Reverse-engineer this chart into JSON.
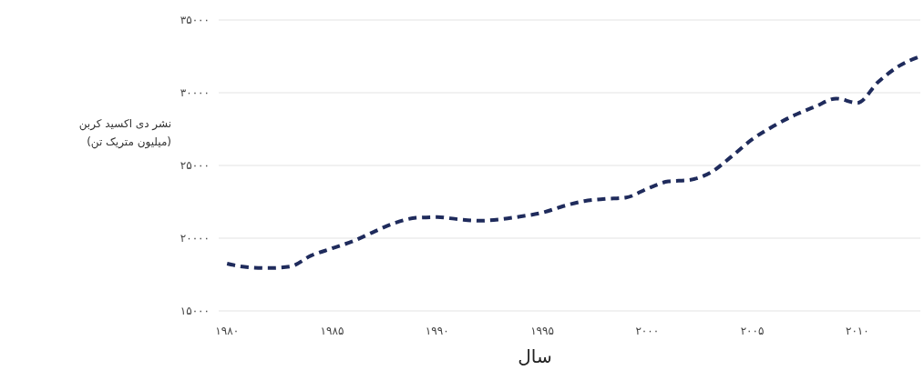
{
  "chart_data": {
    "type": "line",
    "xlabel": "سال",
    "ylabel": "نشر دی اکسید کربن\n(میلیون متریک تن)",
    "x": [
      1980,
      1981,
      1982,
      1983,
      1984,
      1985,
      1986,
      1987,
      1988,
      1989,
      1990,
      1991,
      1992,
      1993,
      1994,
      1995,
      1996,
      1997,
      1998,
      1999,
      2000,
      2001,
      2002,
      2003,
      2004,
      2005,
      2006,
      2007,
      2008,
      2009,
      2010,
      2011,
      2012,
      2013
    ],
    "series": [
      {
        "color": "#1f2b5c",
        "values": [
          18250,
          18000,
          17950,
          18050,
          18800,
          19300,
          19800,
          20450,
          21050,
          21400,
          21450,
          21300,
          21200,
          21300,
          21500,
          21750,
          22200,
          22550,
          22700,
          22800,
          23400,
          23900,
          24000,
          24500,
          25600,
          26800,
          27700,
          28450,
          29050,
          29600,
          29300,
          30750,
          31850,
          32500
        ]
      }
    ],
    "xlim": [
      1979.6,
      2013
    ],
    "xticks": [
      {
        "value": 1980,
        "label": "۱۹۸۰"
      },
      {
        "value": 1985,
        "label": "۱۹۸۵"
      },
      {
        "value": 1990,
        "label": "۱۹۹۰"
      },
      {
        "value": 1995,
        "label": "۱۹۹۵"
      },
      {
        "value": 2000,
        "label": "۲۰۰۰"
      },
      {
        "value": 2005,
        "label": "۲۰۰۵"
      },
      {
        "value": 2010,
        "label": "۲۰۱۰"
      }
    ],
    "ylim": [
      15000,
      35000
    ],
    "yticks": [
      {
        "value": 15000,
        "label": "۱۵۰۰۰"
      },
      {
        "value": 20000,
        "label": "۲۰۰۰۰"
      },
      {
        "value": 25000,
        "label": "۲۵۰۰۰"
      },
      {
        "value": 30000,
        "label": "۳۰۰۰۰"
      },
      {
        "value": 35000,
        "label": "۳۵۰۰۰"
      }
    ],
    "grid": "y",
    "line_style": "dashed",
    "marker": "none"
  }
}
